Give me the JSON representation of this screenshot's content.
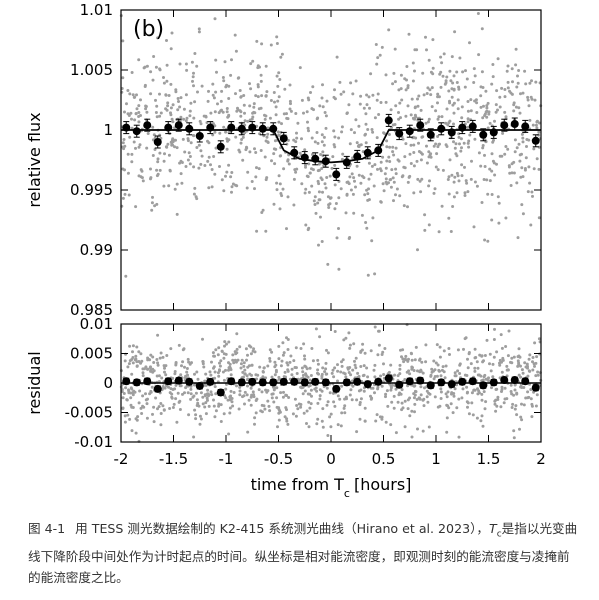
{
  "chart_data": [
    {
      "type": "scatter",
      "panel_label": "(b)",
      "ylabel": "relative flux",
      "xlabel": "",
      "xlim": [
        -2,
        2
      ],
      "ylim": [
        0.985,
        1.01
      ],
      "xticks": [
        -2,
        -1.5,
        -1,
        -0.5,
        0,
        0.5,
        1,
        1.5,
        2
      ],
      "yticks": [
        0.985,
        0.99,
        0.995,
        1,
        1.005,
        1.01
      ],
      "ytick_labels": [
        "0.985",
        "0.99",
        "0.995",
        "1",
        "1.005",
        "1.01"
      ],
      "model": {
        "color": "#000000",
        "x": [
          -2,
          -0.55,
          -0.45,
          -0.3,
          -0.15,
          0,
          0.15,
          0.3,
          0.45,
          0.55,
          2
        ],
        "y": [
          1.0,
          1.0,
          0.9983,
          0.9976,
          0.9974,
          0.9973,
          0.9974,
          0.9976,
          0.9983,
          1.0,
          1.0
        ]
      },
      "binned": {
        "color": "#000000",
        "x": [
          -1.95,
          -1.85,
          -1.75,
          -1.65,
          -1.55,
          -1.45,
          -1.35,
          -1.25,
          -1.15,
          -1.05,
          -0.95,
          -0.85,
          -0.75,
          -0.65,
          -0.55,
          -0.45,
          -0.35,
          -0.25,
          -0.15,
          -0.05,
          0.05,
          0.15,
          0.25,
          0.35,
          0.45,
          0.55,
          0.65,
          0.75,
          0.85,
          0.95,
          1.05,
          1.15,
          1.25,
          1.35,
          1.45,
          1.55,
          1.65,
          1.75,
          1.85,
          1.95
        ],
        "y": [
          1.0002,
          0.9999,
          1.0004,
          0.999,
          1.0002,
          1.0004,
          1.0001,
          0.9995,
          1.0002,
          0.9986,
          1.0002,
          1.0001,
          1.0002,
          1.0001,
          1.0001,
          0.9993,
          0.9981,
          0.9977,
          0.9976,
          0.9974,
          0.9963,
          0.9973,
          0.9978,
          0.9981,
          0.9983,
          1.0008,
          0.9997,
          0.9999,
          1.0004,
          0.9996,
          1.0001,
          0.9998,
          1.0002,
          1.0003,
          0.9996,
          0.9998,
          1.0004,
          1.0005,
          1.0003,
          0.9991
        ],
        "err": [
          0.0005,
          0.0005,
          0.0005,
          0.0005,
          0.0005,
          0.0005,
          0.0005,
          0.0005,
          0.0005,
          0.0005,
          0.0005,
          0.0005,
          0.0005,
          0.0005,
          0.0005,
          0.0005,
          0.0005,
          0.0005,
          0.0005,
          0.0005,
          0.0005,
          0.0005,
          0.0005,
          0.0005,
          0.0005,
          0.0005,
          0.0005,
          0.0005,
          0.0005,
          0.0005,
          0.0005,
          0.0005,
          0.0005,
          0.0005,
          0.0005,
          0.0005,
          0.0005,
          0.0005,
          0.0005,
          0.0005
        ]
      },
      "raw_points": {
        "color": "#9e9e9e",
        "count": 1200,
        "scatter_sigma": 0.0035
      }
    },
    {
      "type": "scatter",
      "ylabel": "residual",
      "xlabel": "time from T",
      "xlabel_sub": "c",
      "xlabel_unit": "[hours]",
      "xlim": [
        -2,
        2
      ],
      "ylim": [
        -0.01,
        0.01
      ],
      "xticks": [
        -2,
        -1.5,
        -1,
        -0.5,
        0,
        0.5,
        1,
        1.5,
        2
      ],
      "xtick_labels": [
        "-2",
        "-1.5",
        "-1",
        "-0.5",
        "0",
        "0.5",
        "1",
        "1.5",
        "2"
      ],
      "yticks": [
        -0.01,
        -0.005,
        0,
        0.005,
        0.01
      ],
      "ytick_labels": [
        "-0.01",
        "-0.005",
        "0",
        "0.005",
        "0.01"
      ],
      "zero_line": 0,
      "binned": {
        "color": "#000000",
        "x": [
          -1.95,
          -1.85,
          -1.75,
          -1.65,
          -1.55,
          -1.45,
          -1.35,
          -1.25,
          -1.15,
          -1.05,
          -0.95,
          -0.85,
          -0.75,
          -0.65,
          -0.55,
          -0.45,
          -0.35,
          -0.25,
          -0.15,
          -0.05,
          0.05,
          0.15,
          0.25,
          0.35,
          0.45,
          0.55,
          0.65,
          0.75,
          0.85,
          0.95,
          1.05,
          1.15,
          1.25,
          1.35,
          1.45,
          1.55,
          1.65,
          1.75,
          1.85,
          1.95
        ],
        "y": [
          0.0003,
          0.0001,
          0.0003,
          -0.001,
          0.0003,
          0.0004,
          0.0002,
          -0.0005,
          0.0002,
          -0.0016,
          0.0003,
          0.0001,
          0.0002,
          0.0001,
          0.0001,
          0.0002,
          0.0002,
          0.0001,
          0.0002,
          0.0001,
          -0.001,
          0.0001,
          0.0002,
          -0.0002,
          0.0002,
          0.0008,
          -0.0003,
          0.0003,
          0.0004,
          -0.0004,
          0.0001,
          -0.0002,
          0.0002,
          0.0003,
          -0.0004,
          0.0001,
          0.0005,
          0.0005,
          0.0003,
          -0.0008
        ],
        "err": [
          0.0005,
          0.0005,
          0.0005,
          0.0005,
          0.0005,
          0.0005,
          0.0005,
          0.0005,
          0.0005,
          0.0005,
          0.0005,
          0.0005,
          0.0005,
          0.0005,
          0.0005,
          0.0005,
          0.0005,
          0.0005,
          0.0005,
          0.0005,
          0.0005,
          0.0005,
          0.0005,
          0.0005,
          0.0005,
          0.0005,
          0.0005,
          0.0005,
          0.0005,
          0.0005,
          0.0005,
          0.0005,
          0.0005,
          0.0005,
          0.0005,
          0.0005,
          0.0005,
          0.0005,
          0.0005,
          0.0005
        ]
      },
      "raw_points": {
        "color": "#9e9e9e",
        "count": 1200,
        "scatter_sigma": 0.0035
      }
    }
  ],
  "caption": {
    "figure_number": "图 4-1",
    "text_before": "用 TESS 测光数据绘制的 K2-415 系统测光曲线（Hirano et al. 2023），",
    "symbol": "T",
    "symbol_sub": "c",
    "text_after": "是指以光变曲线下降阶段中间处作为计时起点的时间。纵坐标是相对能流密度，即观测时刻的能流密度与凌掩前的能流密度之比。"
  }
}
